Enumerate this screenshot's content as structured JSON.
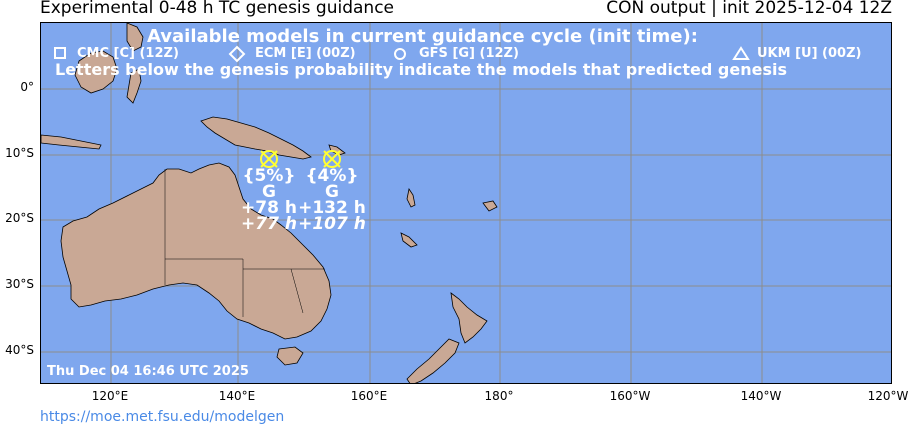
{
  "header": {
    "title_left": "Experimental 0-48 h TC genesis guidance",
    "title_right": "CON output | init 2025-12-04 12Z"
  },
  "legend": {
    "heading": "Available models in current guidance cycle (init time):",
    "models": [
      {
        "symbol": "square",
        "label": "CMC [C] (12Z)"
      },
      {
        "symbol": "diamond",
        "label": "ECM [E] (00Z)"
      },
      {
        "symbol": "circle",
        "label": "GFS [G] (12Z)"
      },
      {
        "symbol": "triangle",
        "label": "UKM [U] (00Z)"
      }
    ],
    "note": "Letters below the genesis probability indicate the models that predicted genesis"
  },
  "axes": {
    "lat_labels": [
      "0°",
      "10°S",
      "20°S",
      "30°S",
      "40°S"
    ],
    "lon_labels": [
      "120°E",
      "140°E",
      "160°E",
      "180°",
      "160°W",
      "140°W",
      "120°W"
    ]
  },
  "genesis_points": [
    {
      "lat": -10.5,
      "lon": 145.2,
      "probability": "{5%}",
      "models": "G",
      "lead_time": "+78 h",
      "lead_time_alt": "+77 h"
    },
    {
      "lat": -10.5,
      "lon": 154.8,
      "probability": "{4%}",
      "models": "G",
      "lead_time": "+132 h",
      "lead_time_alt": "+107 h"
    }
  ],
  "timestamp": "Thu Dec 04 16:46 UTC 2025",
  "footer": {
    "url": "https://moe.met.fsu.edu/modelgen"
  },
  "colors": {
    "ocean": "#7fa7ee",
    "land": "#c9a895",
    "marker": "#ffff33",
    "text_overlay": "#ffffff",
    "url": "#4a8ae6"
  }
}
